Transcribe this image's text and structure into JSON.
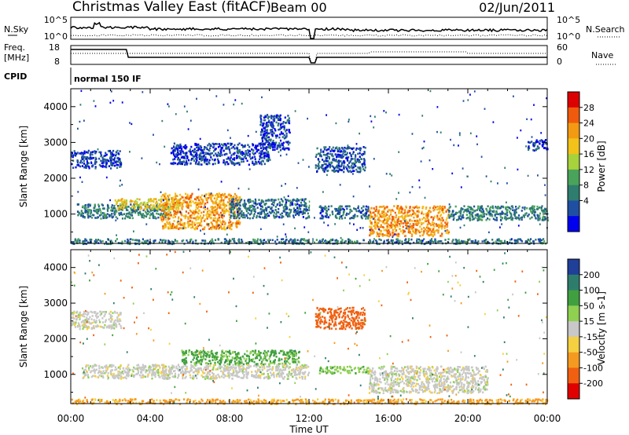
{
  "header": {
    "title": "Christmas Valley East (fitACF)",
    "beam": "Beam 00",
    "date": "02/Jun/2011"
  },
  "panels": {
    "nsky_label": "N.Sky",
    "nsky_ticks": [
      "10^5",
      "10^0"
    ],
    "nsearch_label": "N.Search",
    "nsearch_ticks": [
      "10^5",
      "10^0"
    ],
    "freq_label": "Freq.",
    "freq_unit": "[MHz]",
    "freq_ticks": [
      "18",
      "8"
    ],
    "nave_label": "Nave",
    "nave_ticks": [
      "60",
      "0"
    ],
    "cpid_label": "CPID",
    "cpid_text": "normal 150 IF"
  },
  "chart_data": [
    {
      "type": "heatmap",
      "quantity": "Power",
      "xlabel": "Time UT",
      "ylabel": "Slant Range [km]",
      "xlim": [
        "00:00",
        "24:00"
      ],
      "xticks": [
        "00:00",
        "04:00",
        "08:00",
        "12:00",
        "16:00",
        "20:00",
        "00:00"
      ],
      "ylim": [
        180,
        4500
      ],
      "yticks": [
        1000,
        2000,
        3000,
        4000
      ],
      "colorbar": {
        "label": "Power [dB]",
        "ticks": [
          4,
          8,
          12,
          16,
          20,
          24,
          28
        ],
        "colors": [
          "#0000ee",
          "#1f4fa3",
          "#2f7d6e",
          "#4aa35a",
          "#a7d23b",
          "#f2c21a",
          "#f39a12",
          "#f05a0c",
          "#dd0000"
        ]
      },
      "regions": [
        {
          "t0": 0.0,
          "t1": 2.5,
          "r0": 2300,
          "r1": 2800,
          "level": 5
        },
        {
          "t0": 0.3,
          "t1": 5.0,
          "r0": 900,
          "r1": 1300,
          "level": 10
        },
        {
          "t0": 2.2,
          "t1": 5.5,
          "r0": 1150,
          "r1": 1450,
          "level": 22
        },
        {
          "t0": 4.5,
          "t1": 8.5,
          "r0": 600,
          "r1": 1600,
          "level": 25
        },
        {
          "t0": 8.0,
          "t1": 12.0,
          "r0": 900,
          "r1": 1450,
          "level": 8
        },
        {
          "t0": 5.0,
          "t1": 10.0,
          "r0": 2400,
          "r1": 3000,
          "level": 5
        },
        {
          "t0": 9.5,
          "t1": 11.0,
          "r0": 2800,
          "r1": 3800,
          "level": 5
        },
        {
          "t0": 12.3,
          "t1": 14.8,
          "r0": 2200,
          "r1": 2900,
          "level": 6
        },
        {
          "t0": 12.5,
          "t1": 15.0,
          "r0": 900,
          "r1": 1250,
          "level": 8
        },
        {
          "t0": 15.0,
          "t1": 19.0,
          "r0": 400,
          "r1": 1250,
          "level": 26
        },
        {
          "t0": 19.0,
          "t1": 24.0,
          "r0": 850,
          "r1": 1250,
          "level": 10
        },
        {
          "t0": 23.0,
          "t1": 24.0,
          "r0": 2800,
          "r1": 3100,
          "level": 5
        },
        {
          "t0": 0.0,
          "t1": 24.0,
          "r0": 190,
          "r1": 330,
          "level": 9
        }
      ]
    },
    {
      "type": "heatmap",
      "quantity": "Velocity",
      "xlabel": "Time UT",
      "ylabel": "Slant Range [km]",
      "xlim": [
        "00:00",
        "24:00"
      ],
      "xticks": [
        "00:00",
        "04:00",
        "08:00",
        "12:00",
        "16:00",
        "20:00",
        "00:00"
      ],
      "ylim": [
        180,
        4500
      ],
      "yticks": [
        1000,
        2000,
        3000,
        4000
      ],
      "colorbar": {
        "label": "Velocity [m s-1]",
        "ticks": [
          200,
          100,
          50,
          15,
          -15,
          -50,
          -100,
          -200
        ],
        "colors": [
          "#1f3f99",
          "#2e7d6c",
          "#40a040",
          "#8fd050",
          "#c8c8c8",
          "#f5d040",
          "#f59a20",
          "#f06010",
          "#e00000"
        ]
      },
      "regions": [
        {
          "t0": 0.0,
          "t1": 2.5,
          "r0": 2300,
          "r1": 2800,
          "velocity": 0
        },
        {
          "t0": 0.5,
          "t1": 5.0,
          "r0": 900,
          "r1": 1300,
          "velocity": 0
        },
        {
          "t0": 5.5,
          "t1": 11.5,
          "r0": 1300,
          "r1": 1700,
          "velocity": 60
        },
        {
          "t0": 4.5,
          "t1": 12.0,
          "r0": 900,
          "r1": 1300,
          "velocity": 0
        },
        {
          "t0": 12.3,
          "t1": 14.8,
          "r0": 2300,
          "r1": 2900,
          "velocity": -180
        },
        {
          "t0": 12.5,
          "t1": 15.0,
          "r0": 1050,
          "r1": 1250,
          "velocity": 40
        },
        {
          "t0": 15.0,
          "t1": 21.0,
          "r0": 500,
          "r1": 1250,
          "velocity": 0
        },
        {
          "t0": 0.0,
          "t1": 24.0,
          "r0": 190,
          "r1": 330,
          "velocity": -60
        }
      ]
    }
  ]
}
